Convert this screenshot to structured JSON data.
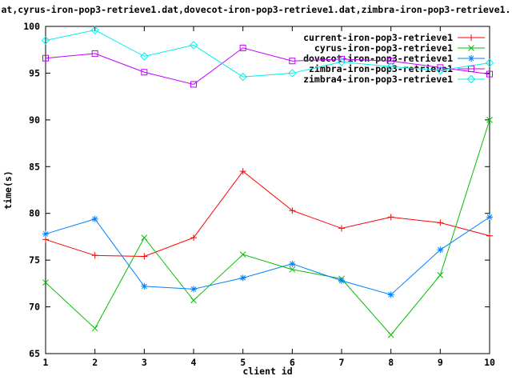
{
  "window": {
    "background": "#ffffff",
    "foreground": "#000000"
  },
  "chart_data": {
    "type": "line",
    "title": "at,cyrus-iron-pop3-retrieve1.dat,dovecot-iron-pop3-retrieve1.dat,zimbra-iron-pop3-retrieve1.",
    "xlabel": "client id",
    "ylabel": "time(s)",
    "xlim": [
      1,
      10
    ],
    "ylim": [
      65,
      100
    ],
    "xticks": [
      1,
      2,
      3,
      4,
      5,
      6,
      7,
      8,
      9,
      10
    ],
    "yticks": [
      65,
      70,
      75,
      80,
      85,
      90,
      95,
      100
    ],
    "grid": false,
    "legend_position": "top-right-inside",
    "x": [
      1,
      2,
      3,
      4,
      5,
      6,
      7,
      8,
      9,
      10
    ],
    "series": [
      {
        "name": "current-iron-pop3-retrieve1",
        "color": "#ff0000",
        "marker": "plus",
        "values": [
          77.2,
          75.5,
          75.4,
          77.4,
          84.5,
          80.3,
          78.4,
          79.6,
          79.0,
          77.6
        ]
      },
      {
        "name": "cyrus-iron-pop3-retrieve1",
        "color": "#00c000",
        "marker": "cross",
        "values": [
          72.6,
          67.7,
          77.4,
          70.7,
          75.6,
          74.0,
          73.0,
          67.0,
          73.4,
          90.0
        ]
      },
      {
        "name": "dovecot-iron-pop3-retrieve1",
        "color": "#0080ff",
        "marker": "asterisk",
        "values": [
          77.8,
          79.4,
          72.2,
          71.9,
          73.1,
          74.6,
          72.8,
          71.3,
          76.1,
          79.6
        ]
      },
      {
        "name": "zimbra-iron-pop3-retrieve1",
        "color": "#c000ff",
        "marker": "square",
        "values": [
          96.6,
          97.1,
          95.1,
          93.8,
          97.7,
          96.3,
          96.5,
          96.3,
          95.6,
          94.9
        ]
      },
      {
        "name": "zimbra4-iron-pop3-retrieve1",
        "color": "#00eeee",
        "marker": "diamond",
        "values": [
          98.5,
          99.6,
          96.8,
          98.0,
          94.6,
          95.0,
          96.2,
          95.7,
          95.3,
          96.1
        ]
      }
    ]
  }
}
